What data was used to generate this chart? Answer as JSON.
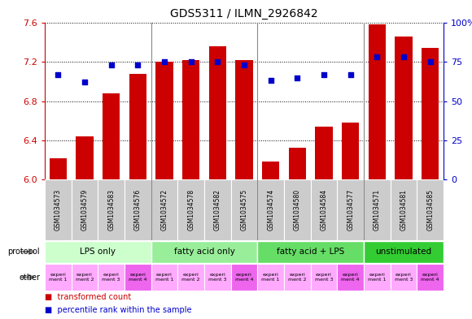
{
  "title": "GDS5311 / ILMN_2926842",
  "samples": [
    "GSM1034573",
    "GSM1034579",
    "GSM1034583",
    "GSM1034576",
    "GSM1034572",
    "GSM1034578",
    "GSM1034582",
    "GSM1034575",
    "GSM1034574",
    "GSM1034580",
    "GSM1034584",
    "GSM1034577",
    "GSM1034571",
    "GSM1034581",
    "GSM1034585"
  ],
  "transformed_counts": [
    6.22,
    6.44,
    6.88,
    7.08,
    7.2,
    7.22,
    7.36,
    7.22,
    6.18,
    6.32,
    6.54,
    6.58,
    7.58,
    7.46,
    7.34
  ],
  "percentile_ranks": [
    67,
    62,
    73,
    73,
    75,
    75,
    75,
    73,
    63,
    65,
    67,
    67,
    78,
    78,
    75
  ],
  "ylim_left": [
    6.0,
    7.6
  ],
  "ylim_right": [
    0,
    100
  ],
  "yticks_left": [
    6.0,
    6.4,
    6.8,
    7.2,
    7.6
  ],
  "yticks_right": [
    0,
    25,
    50,
    75,
    100
  ],
  "bar_color": "#cc0000",
  "dot_color": "#0000cc",
  "protocol_groups": [
    {
      "label": "LPS only",
      "start": 0,
      "end": 4,
      "color": "#ccffcc"
    },
    {
      "label": "fatty acid only",
      "start": 4,
      "end": 8,
      "color": "#99ee99"
    },
    {
      "label": "fatty acid + LPS",
      "start": 8,
      "end": 12,
      "color": "#66dd66"
    },
    {
      "label": "unstimulated",
      "start": 12,
      "end": 15,
      "color": "#33cc33"
    }
  ],
  "other_labels": [
    "experi\nment 1",
    "experi\nment 2",
    "experi\nment 3",
    "experi\nment 4",
    "experi\nment 1",
    "experi\nment 2",
    "experi\nment 3",
    "experi\nment 4",
    "experi\nment 1",
    "experi\nment 2",
    "experi\nment 3",
    "experi\nment 4",
    "experi\nment 1",
    "experi\nment 3",
    "experi\nment 4"
  ],
  "other_colors": [
    "#ffaaff",
    "#ffaaff",
    "#ffaaff",
    "#ee66ee",
    "#ffaaff",
    "#ffaaff",
    "#ffaaff",
    "#ee66ee",
    "#ffaaff",
    "#ffaaff",
    "#ffaaff",
    "#ee66ee",
    "#ffaaff",
    "#ffaaff",
    "#ee66ee"
  ],
  "background_color": "#ffffff",
  "bar_bg_color": "#dddddd",
  "xtick_bg_color": "#cccccc",
  "xlabel_color_left": "#cc0000",
  "xlabel_color_right": "#0000cc"
}
